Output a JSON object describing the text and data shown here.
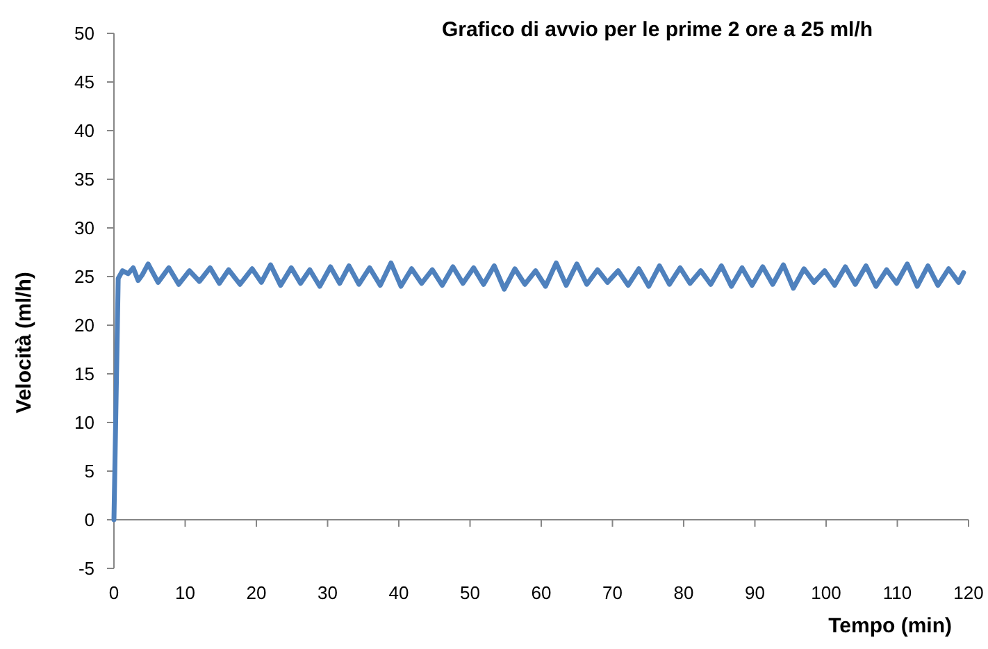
{
  "chart_data": {
    "type": "line",
    "title": "Grafico di avvio per le prime 2 ore a 25 ml/h",
    "xlabel": "Tempo (min)",
    "ylabel": "Velocità (ml/h)",
    "xlim": [
      0,
      120
    ],
    "ylim": [
      -5,
      50
    ],
    "xticks": [
      0,
      10,
      20,
      30,
      40,
      50,
      60,
      70,
      80,
      90,
      100,
      110,
      120
    ],
    "yticks": [
      -5,
      0,
      5,
      10,
      15,
      20,
      25,
      30,
      35,
      40,
      45,
      50
    ],
    "series": [
      {
        "color": "#4f81bd",
        "x": [
          0,
          0.6,
          1.2,
          2.0,
          2.7,
          3.4,
          4.0,
          4.8,
          6.2,
          7.7,
          9.1,
          10.6,
          12.0,
          13.5,
          14.8,
          16.1,
          17.7,
          19.4,
          20.7,
          22.0,
          23.4,
          24.9,
          26.2,
          27.5,
          28.9,
          30.4,
          31.7,
          33.0,
          34.4,
          35.9,
          37.4,
          38.9,
          40.3,
          41.8,
          43.2,
          44.7,
          46.1,
          47.6,
          49.0,
          50.5,
          51.9,
          53.4,
          54.8,
          56.3,
          57.7,
          59.2,
          60.6,
          62.1,
          63.5,
          65.0,
          66.4,
          67.9,
          69.3,
          70.8,
          72.2,
          73.7,
          75.1,
          76.6,
          78.0,
          79.5,
          80.9,
          82.4,
          83.8,
          85.3,
          86.7,
          88.2,
          89.6,
          91.1,
          92.5,
          94.0,
          95.4,
          96.9,
          98.3,
          99.8,
          101.2,
          102.7,
          104.1,
          105.6,
          107.0,
          108.5,
          109.9,
          111.4,
          112.8,
          114.3,
          115.7,
          117.2,
          118.6,
          119.3
        ],
        "values": [
          0,
          24.8,
          25.6,
          25.3,
          25.9,
          24.6,
          25.2,
          26.3,
          24.4,
          25.9,
          24.2,
          25.6,
          24.5,
          25.9,
          24.3,
          25.7,
          24.2,
          25.8,
          24.4,
          26.2,
          24.1,
          25.9,
          24.3,
          25.7,
          24.0,
          26.0,
          24.3,
          26.1,
          24.2,
          25.9,
          24.1,
          26.4,
          24.0,
          25.8,
          24.3,
          25.7,
          24.1,
          26.0,
          24.3,
          25.9,
          24.2,
          26.1,
          23.7,
          25.8,
          24.2,
          25.6,
          24.0,
          26.4,
          24.1,
          26.3,
          24.2,
          25.7,
          24.4,
          25.6,
          24.1,
          25.8,
          24.0,
          26.1,
          24.2,
          25.9,
          24.3,
          25.6,
          24.2,
          26.1,
          24.0,
          25.9,
          24.1,
          26.0,
          24.2,
          26.2,
          23.8,
          25.8,
          24.4,
          25.6,
          24.1,
          26.0,
          24.2,
          26.1,
          24.0,
          25.7,
          24.3,
          26.3,
          24.0,
          26.1,
          24.1,
          25.8,
          24.4,
          25.4
        ]
      }
    ]
  }
}
